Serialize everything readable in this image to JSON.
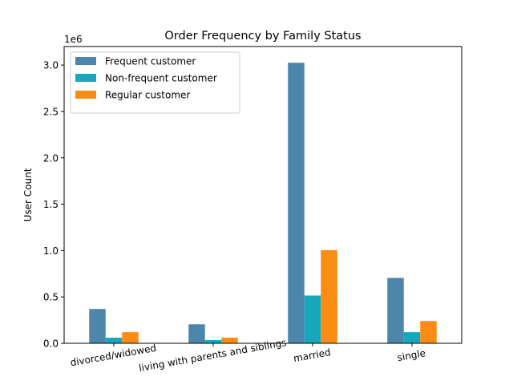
{
  "chart_data": {
    "type": "bar",
    "title": "Order Frequency by Family Status",
    "xlabel": "",
    "ylabel": "User Count",
    "y_scale_label": "1e6",
    "y_multiplier": 1000000,
    "categories": [
      "divorced/widowed",
      "living with parents and siblings",
      "married",
      "single"
    ],
    "series": [
      {
        "name": "Frequent customer",
        "color": "#4c86ab",
        "values": [
          370000,
          205000,
          3025000,
          705000
        ]
      },
      {
        "name": "Non-frequent customer",
        "color": "#17a8be",
        "values": [
          60000,
          35000,
          515000,
          120000
        ]
      },
      {
        "name": "Regular customer",
        "color": "#fb8c13",
        "values": [
          120000,
          60000,
          1005000,
          240000
        ]
      }
    ],
    "ylim": [
      0,
      3200000
    ],
    "yticks": [
      0,
      500000,
      1000000,
      1500000,
      2000000,
      2500000,
      3000000
    ],
    "ytick_labels": [
      "0.0",
      "0.5",
      "1.0",
      "1.5",
      "2.0",
      "2.5",
      "3.0"
    ],
    "xtick_rotation_deg": -10,
    "grid": false,
    "legend_position": "upper-left"
  }
}
